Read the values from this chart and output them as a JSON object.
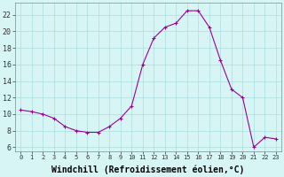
{
  "hours": [
    0,
    1,
    2,
    3,
    4,
    5,
    6,
    7,
    8,
    9,
    10,
    11,
    12,
    13,
    14,
    15,
    16,
    17,
    18,
    19,
    20,
    21,
    22,
    23
  ],
  "values": [
    10.5,
    10.3,
    10.0,
    9.5,
    8.5,
    8.0,
    7.8,
    7.8,
    8.5,
    9.5,
    11.0,
    16.0,
    19.2,
    20.5,
    21.0,
    22.5,
    22.5,
    20.5,
    16.5,
    13.0,
    12.0,
    6.0,
    7.2,
    7.0
  ],
  "line_color": "#990099",
  "marker": "+",
  "marker_size": 3,
  "marker_edge_width": 0.8,
  "line_width": 0.8,
  "xlabel": "Windchill (Refroidissement éolien,°C)",
  "xlabel_fontsize": 7,
  "ylabel_ticks": [
    6,
    8,
    10,
    12,
    14,
    16,
    18,
    20,
    22
  ],
  "ylim": [
    5.5,
    23.5
  ],
  "xlim": [
    -0.5,
    23.5
  ],
  "bg_color": "#d8f5f5",
  "grid_color": "#aadddd",
  "tick_fontsize": 6,
  "xtick_fontsize": 5
}
